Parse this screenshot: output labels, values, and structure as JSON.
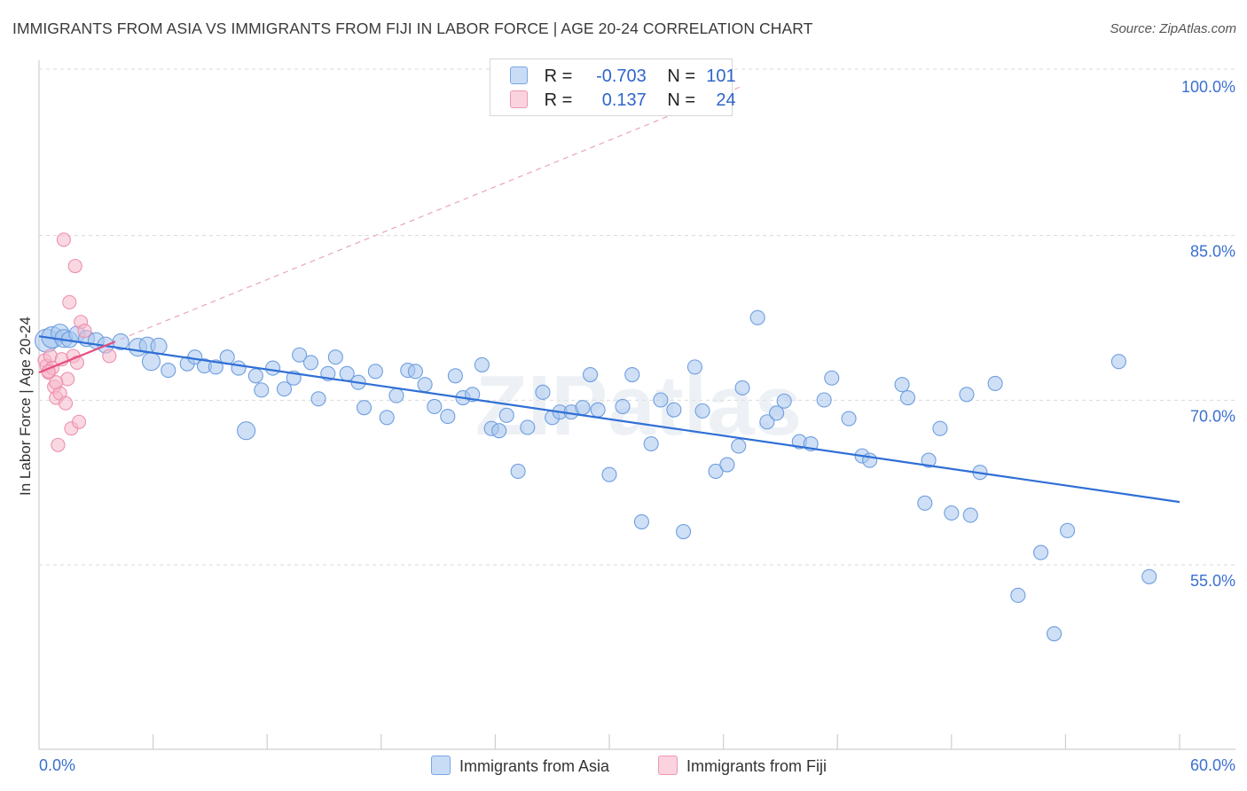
{
  "title": "IMMIGRANTS FROM ASIA VS IMMIGRANTS FROM FIJI IN LABOR FORCE | AGE 20-24 CORRELATION CHART",
  "source": "Source: ZipAtlas.com",
  "legend": {
    "asia": {
      "r_label": "R =",
      "r_value": "-0.703",
      "n_label": "N =",
      "n_value": "101",
      "color": "#a8c6ef"
    },
    "fiji": {
      "r_label": "R =",
      "r_value": "0.137",
      "n_label": "N =",
      "n_value": "24",
      "color": "#f5b8cb"
    }
  },
  "bottom_legend": {
    "asia": "Immigrants from Asia",
    "fiji": "Immigrants from Fiji"
  },
  "chart_data": {
    "type": "scatter",
    "title": "IMMIGRANTS FROM ASIA VS IMMIGRANTS FROM FIJI IN LABOR FORCE | AGE 20-24 CORRELATION CHART",
    "xlabel": "",
    "ylabel": "In Labor Force | Age 20-24",
    "xlim": [
      0,
      60
    ],
    "ylim": [
      40,
      102
    ],
    "x_tick_labels": [
      "0.0%",
      "60.0%"
    ],
    "y_ticks": [
      55,
      70,
      85,
      100
    ],
    "y_tick_labels": [
      "55.0%",
      "70.0%",
      "85.0%",
      "100.0%"
    ],
    "watermark": "ZIPatlas",
    "series": [
      {
        "name": "Immigrants from Asia",
        "color": "#a8c6ef",
        "stroke": "#6f9ee0",
        "trend": {
          "x": [
            0,
            60
          ],
          "y": [
            77.2,
            62.1
          ],
          "color": "#2f6fd6"
        },
        "points": [
          [
            0.4,
            76.8
          ],
          [
            0.7,
            77.1
          ],
          [
            1.1,
            77.5
          ],
          [
            1.3,
            77.0
          ],
          [
            1.6,
            76.9
          ],
          [
            2.0,
            77.4
          ],
          [
            2.5,
            77.0
          ],
          [
            3.0,
            76.8
          ],
          [
            3.5,
            76.4
          ],
          [
            4.3,
            76.7
          ],
          [
            5.2,
            76.2
          ],
          [
            5.7,
            76.4
          ],
          [
            5.9,
            74.9
          ],
          [
            6.3,
            76.3
          ],
          [
            6.8,
            74.1
          ],
          [
            7.8,
            74.7
          ],
          [
            8.2,
            75.3
          ],
          [
            8.7,
            74.5
          ],
          [
            9.3,
            74.4
          ],
          [
            9.9,
            75.3
          ],
          [
            10.5,
            74.3
          ],
          [
            10.9,
            68.6
          ],
          [
            11.4,
            73.6
          ],
          [
            11.7,
            72.3
          ],
          [
            12.3,
            74.3
          ],
          [
            12.9,
            72.4
          ],
          [
            13.4,
            73.4
          ],
          [
            13.7,
            75.5
          ],
          [
            14.3,
            74.8
          ],
          [
            14.7,
            71.5
          ],
          [
            15.2,
            73.8
          ],
          [
            15.6,
            75.3
          ],
          [
            16.2,
            73.8
          ],
          [
            16.8,
            73.0
          ],
          [
            17.1,
            70.7
          ],
          [
            17.7,
            74.0
          ],
          [
            18.3,
            69.8
          ],
          [
            18.8,
            71.8
          ],
          [
            19.4,
            74.1
          ],
          [
            19.8,
            74.0
          ],
          [
            20.3,
            72.8
          ],
          [
            20.8,
            70.8
          ],
          [
            21.5,
            69.9
          ],
          [
            21.9,
            73.6
          ],
          [
            22.3,
            71.6
          ],
          [
            22.8,
            71.9
          ],
          [
            23.3,
            74.6
          ],
          [
            23.8,
            68.8
          ],
          [
            24.2,
            68.6
          ],
          [
            24.6,
            70.0
          ],
          [
            25.2,
            64.9
          ],
          [
            25.7,
            68.9
          ],
          [
            26.5,
            72.1
          ],
          [
            27.0,
            69.8
          ],
          [
            27.4,
            70.3
          ],
          [
            28.0,
            70.3
          ],
          [
            28.6,
            70.7
          ],
          [
            29.0,
            73.7
          ],
          [
            29.4,
            70.5
          ],
          [
            30.0,
            64.6
          ],
          [
            30.7,
            70.8
          ],
          [
            31.2,
            73.7
          ],
          [
            31.7,
            60.3
          ],
          [
            32.2,
            67.4
          ],
          [
            32.7,
            71.4
          ],
          [
            33.4,
            70.5
          ],
          [
            33.9,
            59.4
          ],
          [
            34.5,
            74.4
          ],
          [
            34.9,
            70.4
          ],
          [
            35.6,
            64.9
          ],
          [
            36.2,
            65.5
          ],
          [
            36.8,
            67.2
          ],
          [
            37.0,
            72.5
          ],
          [
            37.8,
            78.9
          ],
          [
            38.3,
            69.4
          ],
          [
            38.8,
            70.2
          ],
          [
            39.2,
            71.3
          ],
          [
            40.0,
            67.6
          ],
          [
            40.6,
            67.4
          ],
          [
            41.3,
            71.4
          ],
          [
            41.7,
            73.4
          ],
          [
            42.6,
            69.7
          ],
          [
            43.3,
            66.3
          ],
          [
            43.7,
            65.9
          ],
          [
            45.4,
            72.8
          ],
          [
            45.7,
            71.6
          ],
          [
            46.6,
            62.0
          ],
          [
            46.8,
            65.9
          ],
          [
            47.4,
            68.8
          ],
          [
            48.0,
            61.1
          ],
          [
            48.8,
            71.9
          ],
          [
            49.0,
            60.9
          ],
          [
            49.5,
            64.8
          ],
          [
            50.3,
            72.9
          ],
          [
            51.5,
            53.6
          ],
          [
            52.7,
            57.5
          ],
          [
            53.4,
            50.1
          ],
          [
            54.1,
            59.5
          ],
          [
            56.8,
            74.9
          ],
          [
            58.4,
            55.3
          ]
        ],
        "sizes": [
          26,
          24,
          20,
          20,
          18,
          18,
          18,
          18,
          18,
          18,
          20,
          18,
          20,
          18,
          16,
          16,
          16,
          16,
          16,
          16,
          16,
          20,
          16,
          16,
          16,
          16,
          16,
          16,
          16,
          16,
          16,
          16,
          16,
          16,
          16,
          16,
          16,
          16,
          16,
          16,
          16,
          16,
          16,
          16,
          16,
          16,
          16,
          16,
          16,
          16,
          16,
          16,
          16,
          16,
          16,
          16,
          16,
          16,
          16,
          16,
          16,
          16,
          16,
          16,
          16,
          16,
          16,
          16,
          16,
          16,
          16,
          16,
          16,
          16,
          16,
          16,
          16,
          16,
          16,
          16,
          16,
          16,
          16,
          16,
          16,
          16,
          16,
          16,
          16,
          16,
          16,
          16,
          16,
          16,
          16,
          16,
          16,
          16,
          16,
          16,
          16
        ]
      },
      {
        "name": "Immigrants from Fiji",
        "color": "#f5b8cb",
        "stroke": "#ee8fae",
        "trend": {
          "x": [
            0,
            4.0
          ],
          "y": [
            73.9,
            76.7
          ],
          "color": "#e5507f"
        },
        "trend_ext": {
          "x": [
            0,
            37
          ],
          "y": [
            73.9,
            100.0
          ],
          "color": "#e9a5bb"
        },
        "points": [
          [
            0.3,
            75.0
          ],
          [
            0.4,
            74.5
          ],
          [
            0.5,
            73.9
          ],
          [
            0.6,
            75.4
          ],
          [
            0.7,
            74.3
          ],
          [
            0.8,
            72.6
          ],
          [
            0.9,
            71.6
          ],
          [
            1.0,
            67.3
          ],
          [
            1.1,
            72.0
          ],
          [
            1.2,
            75.1
          ],
          [
            1.3,
            86.0
          ],
          [
            1.4,
            71.1
          ],
          [
            1.5,
            73.3
          ],
          [
            1.6,
            80.3
          ],
          [
            1.7,
            68.8
          ],
          [
            1.8,
            75.4
          ],
          [
            1.9,
            83.6
          ],
          [
            2.0,
            74.8
          ],
          [
            2.1,
            69.4
          ],
          [
            2.2,
            78.5
          ],
          [
            2.4,
            77.7
          ],
          [
            3.7,
            75.4
          ],
          [
            0.5,
            74.0
          ],
          [
            0.9,
            73.0
          ]
        ],
        "sizes": [
          15,
          15,
          15,
          15,
          15,
          15,
          15,
          15,
          15,
          15,
          15,
          15,
          15,
          15,
          15,
          15,
          15,
          15,
          15,
          15,
          15,
          15,
          15,
          15
        ]
      }
    ]
  }
}
